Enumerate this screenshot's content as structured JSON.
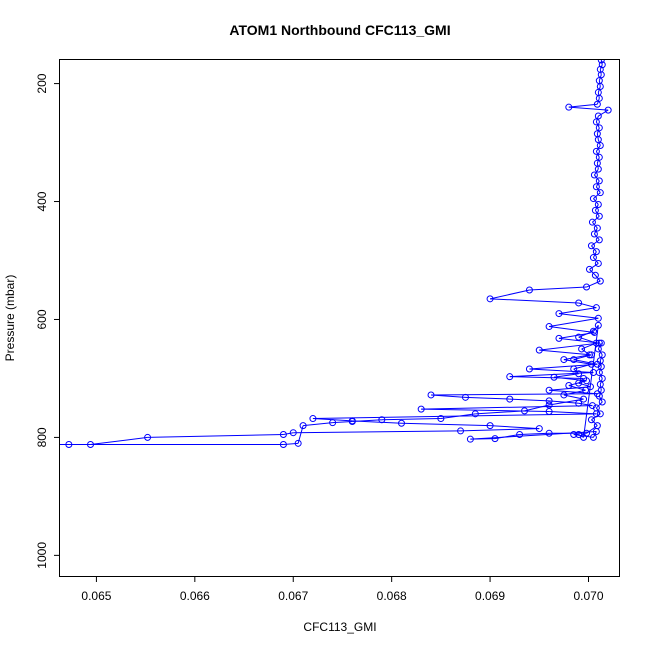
{
  "chart_data": {
    "type": "line",
    "title": "ATOM1 Northbound CFC113_GMI",
    "xlabel": "CFC113_GMI",
    "ylabel": "Pressure (mbar)",
    "xlim": [
      0.06463,
      0.07031
    ],
    "ylim": [
      1035,
      160
    ],
    "y_axis_inverted": true,
    "grid": false,
    "legend": "none",
    "line_color": "#0000ff",
    "marker": "open-circle",
    "x_ticks": [
      0.065,
      0.066,
      0.067,
      0.068,
      0.069,
      0.07
    ],
    "x_tick_labels": [
      "0.065",
      "0.066",
      "0.067",
      "0.068",
      "0.069",
      "0.070"
    ],
    "y_ticks": [
      200,
      400,
      600,
      800,
      1000
    ],
    "y_tick_labels": [
      "200",
      "400",
      "600",
      "800",
      "1000"
    ],
    "series": [
      {
        "points": [
          [
            0.07013,
            160
          ],
          [
            0.07014,
            168
          ],
          [
            0.07012,
            176
          ],
          [
            0.07013,
            185
          ],
          [
            0.07011,
            195
          ],
          [
            0.07012,
            205
          ],
          [
            0.0701,
            215
          ],
          [
            0.07011,
            225
          ],
          [
            0.07009,
            235
          ],
          [
            0.0698,
            240
          ],
          [
            0.0702,
            245
          ],
          [
            0.0701,
            255
          ],
          [
            0.07008,
            265
          ],
          [
            0.07011,
            275
          ],
          [
            0.07009,
            285
          ],
          [
            0.0701,
            295
          ],
          [
            0.07012,
            305
          ],
          [
            0.07008,
            315
          ],
          [
            0.07011,
            325
          ],
          [
            0.07009,
            335
          ],
          [
            0.0701,
            345
          ],
          [
            0.07006,
            355
          ],
          [
            0.07011,
            365
          ],
          [
            0.07008,
            375
          ],
          [
            0.07012,
            385
          ],
          [
            0.07005,
            395
          ],
          [
            0.0701,
            405
          ],
          [
            0.07007,
            415
          ],
          [
            0.07011,
            425
          ],
          [
            0.07004,
            435
          ],
          [
            0.07009,
            445
          ],
          [
            0.07006,
            455
          ],
          [
            0.07011,
            465
          ],
          [
            0.07003,
            475
          ],
          [
            0.07008,
            485
          ],
          [
            0.07005,
            495
          ],
          [
            0.0701,
            505
          ],
          [
            0.07001,
            515
          ],
          [
            0.07007,
            525
          ],
          [
            0.07012,
            535
          ],
          [
            0.06998,
            545
          ],
          [
            0.0694,
            550
          ],
          [
            0.069,
            565
          ],
          [
            0.0699,
            572
          ],
          [
            0.07008,
            580
          ],
          [
            0.0697,
            590
          ],
          [
            0.0701,
            598
          ],
          [
            0.0696,
            612
          ],
          [
            0.07006,
            622
          ],
          [
            0.0697,
            632
          ],
          [
            0.07011,
            640
          ],
          [
            0.0695,
            652
          ],
          [
            0.07003,
            660
          ],
          [
            0.06985,
            668
          ],
          [
            0.07009,
            676
          ],
          [
            0.0694,
            684
          ],
          [
            0.07005,
            690
          ],
          [
            0.0692,
            697
          ],
          [
            0.06995,
            700
          ],
          [
            0.0699,
            708
          ],
          [
            0.07002,
            714
          ],
          [
            0.0696,
            720
          ],
          [
            0.07009,
            726
          ],
          [
            0.0684,
            728
          ],
          [
            0.06875,
            732
          ],
          [
            0.0692,
            735
          ],
          [
            0.0696,
            738
          ],
          [
            0.0699,
            742
          ],
          [
            0.07004,
            746
          ],
          [
            0.0683,
            752
          ],
          [
            0.0696,
            756
          ],
          [
            0.07008,
            760
          ],
          [
            0.0672,
            768
          ],
          [
            0.0676,
            772
          ],
          [
            0.0681,
            776
          ],
          [
            0.069,
            780
          ],
          [
            0.0695,
            785
          ],
          [
            0.0687,
            789
          ],
          [
            0.067,
            792
          ],
          [
            0.0669,
            795
          ],
          [
            0.06552,
            800
          ],
          [
            0.06494,
            812
          ],
          [
            0.06472,
            812
          ],
          [
            0.06457,
            812
          ],
          [
            0.0669,
            812
          ],
          [
            0.06705,
            810
          ],
          [
            0.0671,
            780
          ],
          [
            0.0674,
            775
          ],
          [
            0.0676,
            773
          ],
          [
            0.0679,
            770
          ],
          [
            0.0685,
            768
          ],
          [
            0.06885,
            760
          ],
          [
            0.06935,
            755
          ],
          [
            0.0696,
            745
          ],
          [
            0.06995,
            735
          ],
          [
            0.06975,
            728
          ],
          [
            0.06997,
            720
          ],
          [
            0.0698,
            712
          ],
          [
            0.06998,
            704
          ],
          [
            0.06965,
            698
          ],
          [
            0.0699,
            692
          ],
          [
            0.06985,
            684
          ],
          [
            0.07003,
            676
          ],
          [
            0.06975,
            668
          ],
          [
            0.07001,
            660
          ],
          [
            0.06993,
            650
          ],
          [
            0.07008,
            640
          ],
          [
            0.0699,
            630
          ],
          [
            0.07005,
            620
          ],
          [
            0.0701,
            610
          ],
          [
            0.06995,
            800
          ],
          [
            0.0699,
            795
          ],
          [
            0.06985,
            795
          ],
          [
            0.07005,
            800
          ],
          [
            0.07008,
            790
          ],
          [
            0.0688,
            803
          ],
          [
            0.06905,
            802
          ],
          [
            0.0693,
            795
          ],
          [
            0.0696,
            793
          ],
          [
            0.06998,
            793
          ],
          [
            0.07009,
            780
          ],
          [
            0.07003,
            770
          ],
          [
            0.07012,
            760
          ],
          [
            0.07008,
            750
          ],
          [
            0.07014,
            740
          ],
          [
            0.07011,
            730
          ],
          [
            0.07013,
            720
          ],
          [
            0.07012,
            710
          ],
          [
            0.07014,
            700
          ],
          [
            0.07011,
            690
          ],
          [
            0.07013,
            680
          ],
          [
            0.07012,
            670
          ],
          [
            0.07014,
            660
          ],
          [
            0.0701,
            650
          ],
          [
            0.07013,
            640
          ]
        ]
      }
    ]
  }
}
